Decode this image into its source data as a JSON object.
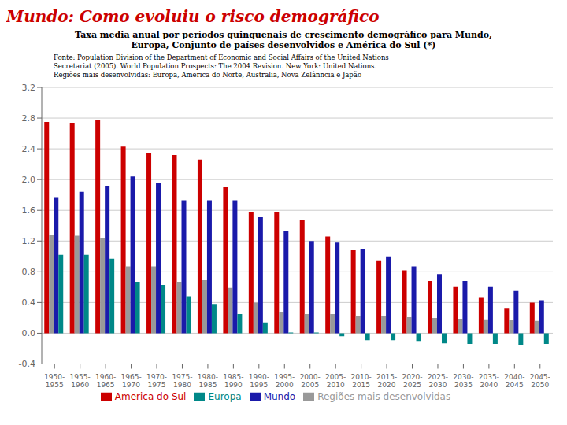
{
  "chart_data": {
    "type": "bar",
    "title": "Mundo: Como evoluiu o risco demográfico",
    "subtitle": "Taxa media anual por períodos quinquenais de crescimento demográfico para Mundo,\nEuropa, Conjunto de países desenvolvidos e América do Sul (*)",
    "annotations": [
      "Fonte: Population Division of the Department of Economic and Social Affairs of the United Nations\nSecretariat (2005). World Population Prospects: The 2004 Revision. New York: United Nations.\nRegiões mais desenvolvidas:  Europa, America do Norte, Australia, Nova Zelânncia e Japão"
    ],
    "categories": [
      "1950-\n1955",
      "1955-\n1960",
      "1960-\n1965",
      "1965-\n1970",
      "1970-\n1975",
      "1975-\n1980",
      "1980-\n1985",
      "1985-\n1990",
      "1990-\n1995",
      "1995-\n2000",
      "2000-\n2005",
      "2005-\n2010",
      "2010-\n2015",
      "2015-\n2020",
      "2020-\n2025",
      "2025-\n2030",
      "2030-\n2035",
      "2035-\n2040",
      "2040-\n2045",
      "2045-\n2050"
    ],
    "series": [
      {
        "name": "America do Sul",
        "color": "#cc0000",
        "values": [
          2.75,
          2.74,
          2.78,
          2.43,
          2.35,
          2.32,
          2.26,
          1.91,
          1.58,
          1.58,
          1.48,
          1.26,
          1.08,
          0.95,
          0.82,
          0.68,
          0.6,
          0.47,
          0.33,
          0.4
        ]
      },
      {
        "name": "Regiões mais desenvolvidas",
        "color": "#999999",
        "values": [
          1.28,
          1.27,
          1.24,
          0.87,
          0.87,
          0.67,
          0.69,
          0.59,
          0.4,
          0.27,
          0.25,
          0.25,
          0.23,
          0.22,
          0.21,
          0.2,
          0.19,
          0.18,
          0.17,
          0.16
        ]
      },
      {
        "name": "Mundo",
        "color": "#1a1aaa",
        "values": [
          1.77,
          1.84,
          1.92,
          2.04,
          1.96,
          1.73,
          1.73,
          1.73,
          1.51,
          1.33,
          1.2,
          1.18,
          1.1,
          1.0,
          0.87,
          0.77,
          0.68,
          0.6,
          0.55,
          0.43
        ]
      },
      {
        "name": "Europa",
        "color": "#008888",
        "values": [
          1.02,
          1.02,
          0.97,
          0.67,
          0.63,
          0.48,
          0.38,
          0.25,
          0.14,
          0.01,
          0.01,
          -0.04,
          -0.09,
          -0.09,
          -0.1,
          -0.13,
          -0.14,
          -0.14,
          -0.15,
          -0.14
        ]
      }
    ],
    "ylim": [
      -0.4,
      3.2
    ],
    "yticks": [
      -0.4,
      {
        "value": 0.0,
        "label": "0.0"
      },
      0.4,
      0.8,
      1.2,
      1.6,
      {
        "value": 2.0,
        "label": "2.0"
      },
      2.4,
      2.8,
      3.2
    ],
    "grid": true,
    "legend": "bottom"
  }
}
